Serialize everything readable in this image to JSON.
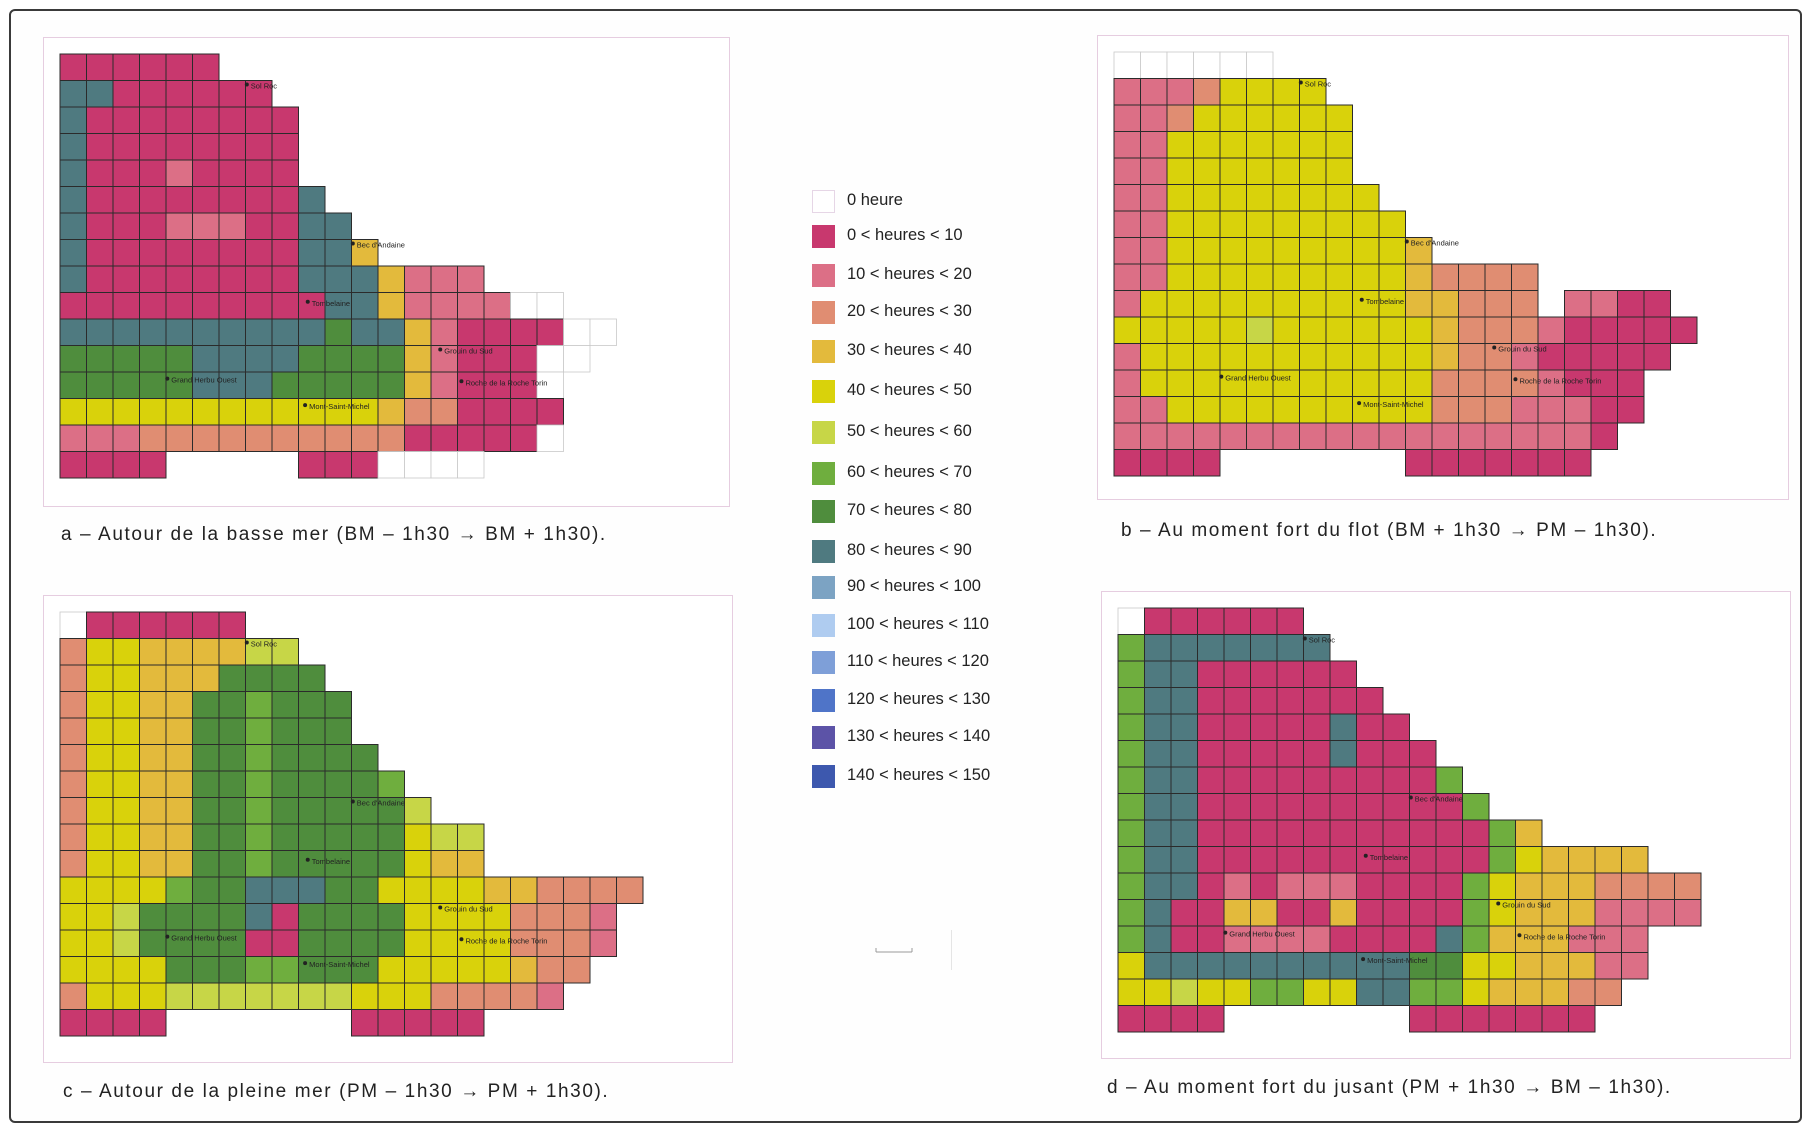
{
  "colors": {
    "0": "#ffffff",
    "1": "#c8386e",
    "2": "#dc6f86",
    "3": "#e08d72",
    "4": "#e3ba3c",
    "5": "#d9d20b",
    "6": "#c7d647",
    "7": "#6fae3e",
    "8": "#4f8d3d",
    "9": "#4f7a80",
    "10": "#7ca3c3",
    "11": "#afccf0",
    "12": "#7e9fd8",
    "13": "#4f74c8",
    "14": "#5c53a7",
    "15": "#3d58ae"
  },
  "legend": [
    {
      "code": 0,
      "label": "0 heure"
    },
    {
      "code": 1,
      "label": "0 < heures < 10"
    },
    {
      "code": 2,
      "label": "10 < heures < 20"
    },
    {
      "code": 3,
      "label": "20 < heures < 30"
    },
    {
      "code": 4,
      "label": "30 < heures < 40"
    },
    {
      "code": 5,
      "label": "40 < heures < 50"
    },
    {
      "code": 6,
      "label": "50 < heures < 60"
    },
    {
      "code": 7,
      "label": "60 < heures < 70"
    },
    {
      "code": 8,
      "label": "70 < heures < 80"
    },
    {
      "code": 9,
      "label": "80 < heures < 90"
    },
    {
      "code": 10,
      "label": "90 < heures < 100"
    },
    {
      "code": 11,
      "label": "100 < heures < 110"
    },
    {
      "code": 12,
      "label": "110 < heures < 120"
    },
    {
      "code": 13,
      "label": "120 < heures < 130"
    },
    {
      "code": 14,
      "label": "130 < heures < 140"
    },
    {
      "code": 15,
      "label": "140 < heures < 150"
    }
  ],
  "place_names": {
    "sol_roc": "Sol Roc",
    "bec_dandaine": "Bec d'Andaine",
    "tombelaine": "Tombelaine",
    "grouin_du_sud": "Grouin du Sud",
    "grand_herbu_ouest": "Grand Herbu Ouest",
    "mont_saint_michel": "Mont-Saint-Michel",
    "roche_torin": "Roche de la Roche Torin"
  },
  "panels": [
    {
      "id": "a",
      "caption": "a – Autour de la basse mer (BM – 1h30 → BM + 1h30).",
      "grid": [
        "1111110000000000000",
        "9911111111000000000",
        "9111111111000000000",
        "9111111111000000000",
        "9111211111900000000",
        "9111111111990000000",
        "9111222111994000000",
        "91111111199942000000",
        "1111111111999422220000",
        "1111111111999422220000",
        "99999999998999421111000",
        "88888999988888421110000",
        "88888999888888421110000",
        "555555555555433111111000",
        "222333333333331111111000",
        "11111000000011100000000"
      ]
    }
  ]
}
